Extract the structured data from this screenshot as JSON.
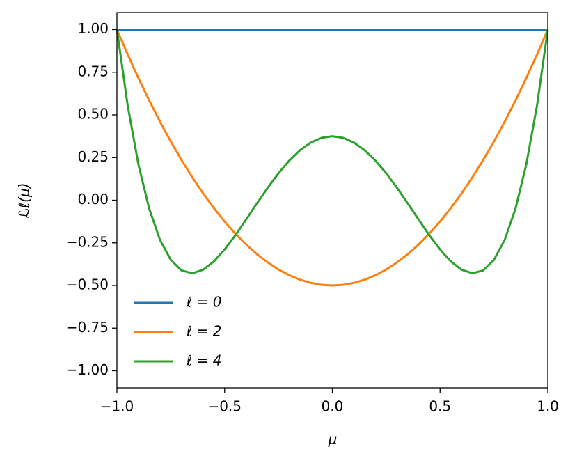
{
  "chart_data": {
    "type": "line",
    "x_label": "μ",
    "y_label": "ℒℓ(μ)",
    "x": [
      -1,
      -0.95,
      -0.9,
      -0.85,
      -0.8,
      -0.75,
      -0.7,
      -0.65,
      -0.6,
      -0.55,
      -0.5,
      -0.45,
      -0.4,
      -0.35,
      -0.3,
      -0.25,
      -0.2,
      -0.15,
      -0.1,
      -0.05,
      0,
      0.05,
      0.1,
      0.15,
      0.2,
      0.25,
      0.3,
      0.35,
      0.4,
      0.45,
      0.5,
      0.55,
      0.6,
      0.65,
      0.7,
      0.75,
      0.8,
      0.85,
      0.9,
      0.95,
      1
    ],
    "series": [
      {
        "name": "ℓ = 0",
        "color": "#1f77b4",
        "values": [
          1,
          1,
          1,
          1,
          1,
          1,
          1,
          1,
          1,
          1,
          1,
          1,
          1,
          1,
          1,
          1,
          1,
          1,
          1,
          1,
          1,
          1,
          1,
          1,
          1,
          1,
          1,
          1,
          1,
          1,
          1,
          1,
          1,
          1,
          1,
          1,
          1,
          1,
          1,
          1,
          1
        ]
      },
      {
        "name": "ℓ = 2",
        "color": "#ff7f0e",
        "values": [
          1,
          0.85375,
          0.715,
          0.58375,
          0.46,
          0.34375,
          0.235,
          0.13375,
          0.04,
          -0.04625,
          -0.125,
          -0.19625,
          -0.26,
          -0.31625,
          -0.365,
          -0.40625,
          -0.44,
          -0.46625,
          -0.485,
          -0.49625,
          -0.5,
          -0.49625,
          -0.485,
          -0.46625,
          -0.44,
          -0.40625,
          -0.365,
          -0.31625,
          -0.26,
          -0.19625,
          -0.125,
          -0.04625,
          0.04,
          0.13375,
          0.235,
          0.34375,
          0.46,
          0.58375,
          0.715,
          0.85375,
          1
        ]
      },
      {
        "name": "ℓ = 4",
        "color": "#2ca02c",
        "values": [
          1,
          0.55409,
          0.20794,
          -0.0506,
          -0.233,
          -0.3501,
          -0.41206,
          -0.42841,
          -0.408,
          -0.35904,
          -0.28906,
          -0.20497,
          -0.113,
          -0.01872,
          0.07294,
          0.15771,
          0.232,
          0.29284,
          0.33794,
          0.36565,
          0.375,
          0.36565,
          0.33794,
          0.29284,
          0.232,
          0.15771,
          0.07294,
          -0.01872,
          -0.113,
          -0.20497,
          -0.28906,
          -0.35904,
          -0.408,
          -0.42841,
          -0.41206,
          -0.3501,
          -0.233,
          -0.0506,
          0.20794,
          0.55409,
          1
        ]
      }
    ],
    "xlim": [
      -1,
      1
    ],
    "ylim": [
      -1.1,
      1.1
    ],
    "xticks": [
      {
        "value": -1,
        "label": "−1.0"
      },
      {
        "value": -0.5,
        "label": "−0.5"
      },
      {
        "value": 0,
        "label": "0.0"
      },
      0.5,
      {
        "value": 1,
        "label": "1.0"
      }
    ],
    "yticks": [
      {
        "value": -1,
        "label": "−1.00"
      },
      {
        "value": -0.75,
        "label": "−0.75"
      },
      {
        "value": -0.5,
        "label": "−0.50"
      },
      {
        "value": -0.25,
        "label": "−0.25"
      },
      {
        "value": 0,
        "label": "0.00"
      },
      0.25,
      {
        "value": 0.5,
        "label": "0.50"
      },
      0.75,
      {
        "value": 1,
        "label": "1.00"
      }
    ],
    "grid": false,
    "legend": "lower left"
  }
}
